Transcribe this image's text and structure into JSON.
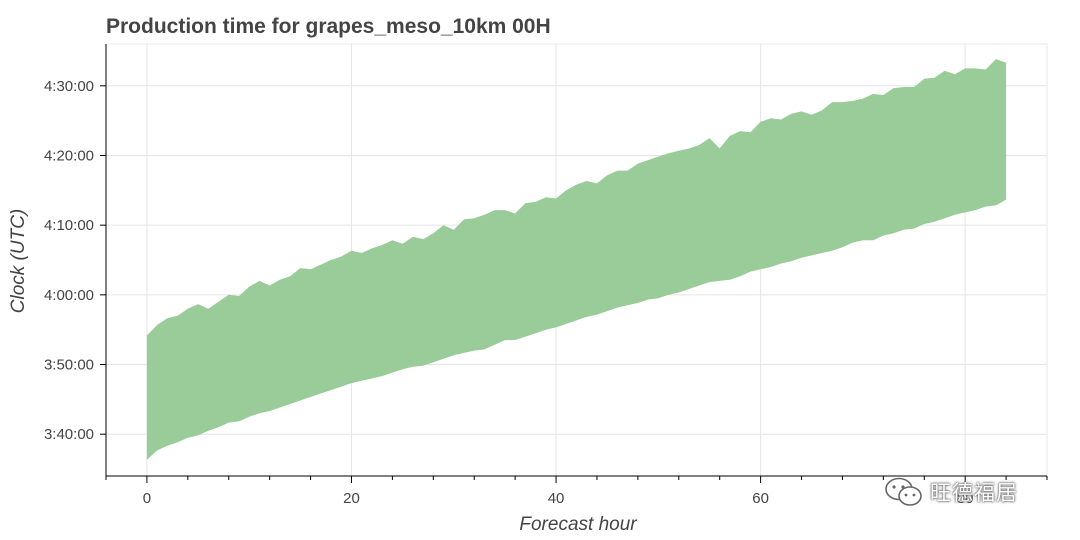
{
  "chart_data": {
    "type": "area",
    "title": "Production time for grapes_meso_10km 00H",
    "xlabel": "Forecast hour",
    "ylabel": "Clock (UTC)",
    "xlim": [
      -4,
      88
    ],
    "ylim": [
      "3:34:00",
      "4:36:00"
    ],
    "xticks": [
      "0",
      "20",
      "40",
      "60",
      "80"
    ],
    "yticks": [
      "3:40:00",
      "3:50:00",
      "4:00:00",
      "4:10:00",
      "4:20:00",
      "4:30:00"
    ],
    "grid": true,
    "color": "#99cc99",
    "x": [
      0,
      1,
      2,
      3,
      4,
      5,
      6,
      7,
      8,
      9,
      10,
      11,
      12,
      13,
      14,
      15,
      16,
      17,
      18,
      19,
      20,
      21,
      22,
      23,
      24,
      25,
      26,
      27,
      28,
      29,
      30,
      31,
      32,
      33,
      34,
      35,
      36,
      37,
      38,
      39,
      40,
      41,
      42,
      43,
      44,
      45,
      46,
      47,
      48,
      49,
      50,
      51,
      52,
      53,
      54,
      55,
      56,
      57,
      58,
      59,
      60,
      61,
      62,
      63,
      64,
      65,
      66,
      67,
      68,
      69,
      70,
      71,
      72,
      73,
      74,
      75,
      76,
      77,
      78,
      79,
      80,
      81,
      82,
      83,
      84
    ],
    "upper": [
      "3:54:10",
      "3:55:40",
      "3:56:40",
      "3:57:00",
      "3:58:00",
      "3:58:40",
      "3:58:00",
      "3:59:00",
      "4:00:00",
      "3:59:50",
      "4:01:10",
      "4:02:00",
      "4:01:20",
      "4:02:10",
      "4:02:40",
      "4:03:50",
      "4:03:40",
      "4:04:20",
      "4:05:00",
      "4:05:30",
      "4:06:20",
      "4:06:00",
      "4:06:40",
      "4:07:10",
      "4:07:50",
      "4:07:20",
      "4:08:20",
      "4:08:00",
      "4:08:50",
      "4:10:00",
      "4:09:20",
      "4:10:50",
      "4:11:00",
      "4:11:30",
      "4:12:10",
      "4:12:10",
      "4:11:40",
      "4:13:10",
      "4:13:20",
      "4:14:00",
      "4:13:50",
      "4:15:00",
      "4:15:50",
      "4:16:20",
      "4:16:00",
      "4:17:10",
      "4:17:50",
      "4:17:50",
      "4:18:50",
      "4:19:20",
      "4:19:50",
      "4:20:20",
      "4:20:40",
      "4:21:00",
      "4:21:30",
      "4:22:30",
      "4:21:00",
      "4:22:50",
      "4:23:30",
      "4:23:20",
      "4:24:50",
      "4:25:20",
      "4:25:10",
      "4:26:00",
      "4:26:20",
      "4:25:50",
      "4:26:30",
      "4:27:40",
      "4:27:40",
      "4:27:50",
      "4:28:10",
      "4:28:50",
      "4:28:40",
      "4:29:40",
      "4:29:50",
      "4:29:50",
      "4:31:00",
      "4:31:10",
      "4:32:10",
      "4:31:40",
      "4:32:30",
      "4:32:30",
      "4:32:20",
      "4:33:50",
      "4:33:20"
    ],
    "lower": [
      "3:36:20",
      "3:37:40",
      "3:38:20",
      "3:38:50",
      "3:39:30",
      "3:39:50",
      "3:40:30",
      "3:41:00",
      "3:41:40",
      "3:41:50",
      "3:42:30",
      "3:43:00",
      "3:43:20",
      "3:43:50",
      "3:44:20",
      "3:44:50",
      "3:45:20",
      "3:45:50",
      "3:46:20",
      "3:46:50",
      "3:47:20",
      "3:47:40",
      "3:48:00",
      "3:48:20",
      "3:48:50",
      "3:49:20",
      "3:49:40",
      "3:49:50",
      "3:50:20",
      "3:50:50",
      "3:51:20",
      "3:51:40",
      "3:52:00",
      "3:52:10",
      "3:52:50",
      "3:53:30",
      "3:53:30",
      "3:54:00",
      "3:54:30",
      "3:55:00",
      "3:55:20",
      "3:55:50",
      "3:56:20",
      "3:56:50",
      "3:57:10",
      "3:57:40",
      "3:58:10",
      "3:58:30",
      "3:58:50",
      "3:59:20",
      "3:59:30",
      "4:00:00",
      "4:00:20",
      "4:00:50",
      "4:01:20",
      "4:01:50",
      "4:02:00",
      "4:02:10",
      "4:02:40",
      "4:03:20",
      "4:03:40",
      "4:04:00",
      "4:04:30",
      "4:04:50",
      "4:05:20",
      "4:05:40",
      "4:06:00",
      "4:06:20",
      "4:06:50",
      "4:07:30",
      "4:07:50",
      "4:07:50",
      "4:08:30",
      "4:08:50",
      "4:09:20",
      "4:09:30",
      "4:10:10",
      "4:10:30",
      "4:11:00",
      "4:11:30",
      "4:11:50",
      "4:12:10",
      "4:12:40",
      "4:12:50",
      "4:13:40"
    ]
  },
  "watermark": {
    "text": "旺德福居",
    "icon": "wechat-icon"
  }
}
